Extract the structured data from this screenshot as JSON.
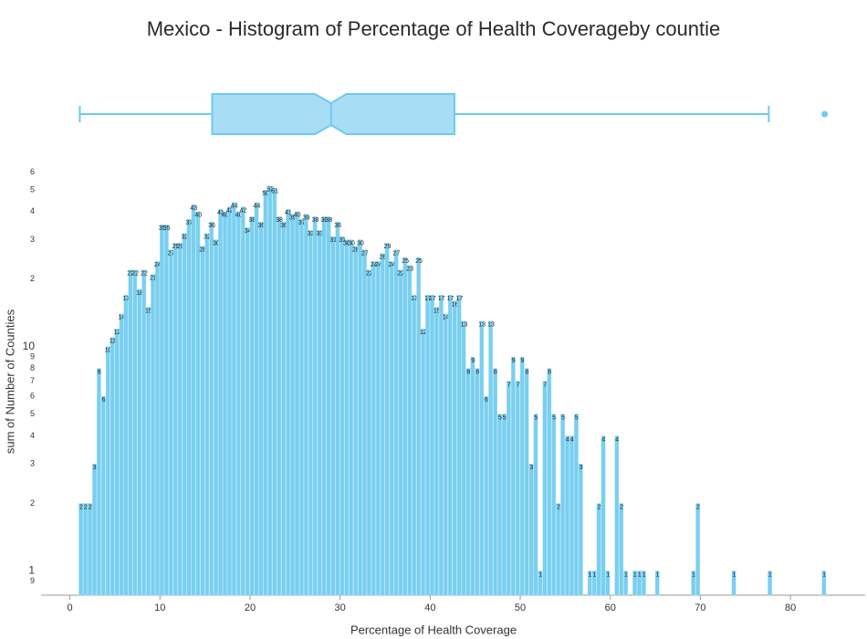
{
  "chart_data": {
    "type": "histogram",
    "title": "Mexico - Histogram of Percentage of Health Coverageby countie",
    "x_label": "Percentage of Health Coverage",
    "y_label": "sum of Number of Counties",
    "color": "#79cff0",
    "log_y": true,
    "xlim": [
      -3.2,
      88.3
    ],
    "ylim": [
      0.78,
      65
    ],
    "xticks": [
      0,
      10,
      20,
      30,
      40,
      50,
      60,
      70,
      80
    ],
    "yticks": [
      {
        "value": 0.9,
        "label": "9"
      },
      1,
      2,
      3,
      4,
      5,
      6,
      7,
      8,
      9,
      10,
      {
        "value": 20,
        "label": "2"
      },
      {
        "value": 30,
        "label": "3"
      },
      {
        "value": 40,
        "label": "4"
      },
      {
        "value": 50,
        "label": "5"
      },
      {
        "value": 60,
        "label": "6"
      }
    ],
    "bins": [
      1,
      1.5,
      2,
      2.5,
      3,
      3.5,
      4,
      4.5,
      5,
      5.5,
      6,
      6.5,
      7,
      7.5,
      8,
      8.5,
      9,
      9.5,
      10,
      10.5,
      11,
      11.5,
      12,
      12.5,
      13,
      13.5,
      14,
      14.5,
      15,
      15.5,
      16,
      16.5,
      17,
      17.5,
      18,
      18.5,
      19,
      19.5,
      20,
      20.5,
      21,
      21.5,
      22,
      22.5,
      23,
      23.5,
      24,
      24.5,
      25,
      25.5,
      26,
      26.5,
      27,
      27.5,
      28,
      28.5,
      29,
      29.5,
      30,
      30.5,
      31,
      31.5,
      32,
      32.5,
      33,
      33.5,
      34,
      34.5,
      35,
      35.5,
      36,
      36.5,
      37,
      37.5,
      38,
      38.5,
      39,
      39.5,
      40,
      40.5,
      41,
      41.5,
      42,
      42.5,
      43,
      43.5,
      44,
      44.5,
      45,
      45.5,
      46,
      46.5,
      47,
      47.5,
      48,
      48.5,
      49,
      49.5,
      50,
      50.5,
      51,
      51.5,
      52,
      52.5,
      53,
      53.5,
      54,
      54.5,
      55,
      55.5,
      56,
      56.5,
      57,
      57.5,
      58,
      58.5,
      59,
      59.5,
      60,
      60.5,
      61,
      61.5,
      62,
      62.5,
      63,
      63.5,
      64,
      64.5,
      65,
      65.5,
      66,
      66.5,
      67,
      67.5,
      68,
      68.5,
      69,
      69.5,
      70,
      70.5,
      71,
      71.5,
      72,
      72.5,
      73,
      73.5,
      74,
      74.5,
      75,
      75.5,
      76,
      76.5,
      77,
      77.5,
      78,
      78.5,
      79,
      79.5,
      80,
      80.5,
      81,
      81.5,
      82,
      82.5,
      83,
      83.5,
      84
    ],
    "values": [
      2,
      2,
      2,
      3,
      8,
      6,
      10,
      11,
      12,
      14,
      17,
      22,
      22,
      18,
      22,
      15,
      21,
      24,
      35,
      35,
      27,
      29,
      29,
      32,
      37,
      43,
      40,
      28,
      32,
      36,
      30,
      41,
      40,
      42,
      44,
      40,
      42,
      34,
      38,
      44,
      36,
      50,
      52,
      51,
      38,
      36,
      41,
      39,
      40,
      37,
      39,
      33,
      38,
      33,
      38,
      38,
      31,
      36,
      31,
      30,
      30,
      28,
      30,
      27,
      22,
      24,
      24,
      26,
      29,
      24,
      27,
      22,
      25,
      23,
      17,
      25,
      12,
      17,
      17,
      15,
      17,
      14,
      17,
      16,
      17,
      13,
      8,
      9,
      8,
      13,
      6,
      13,
      8,
      5,
      5,
      7,
      9,
      7,
      9,
      8,
      3,
      5,
      1,
      7,
      8,
      5,
      2,
      5,
      4,
      4,
      5,
      3,
      0,
      1,
      1,
      2,
      4,
      1,
      0,
      4,
      2,
      1,
      0,
      1,
      1,
      1,
      0,
      0,
      1,
      0,
      0,
      0,
      0,
      0,
      0,
      0,
      1,
      2,
      0,
      0,
      0,
      0,
      0,
      0,
      0,
      1,
      0,
      0,
      0,
      0,
      0,
      0,
      0,
      1,
      0,
      0,
      0,
      0,
      0,
      0,
      0,
      0,
      0,
      0,
      0,
      1
    ],
    "box": {
      "min": 1.1,
      "q1": 15.8,
      "notch_low": 27.2,
      "median": 29.0,
      "notch_high": 30.7,
      "q3": 42.7,
      "max": 77.6,
      "outliers": [
        83.8
      ],
      "color": "#a8ddf6",
      "stroke": "#6dcbee"
    }
  }
}
